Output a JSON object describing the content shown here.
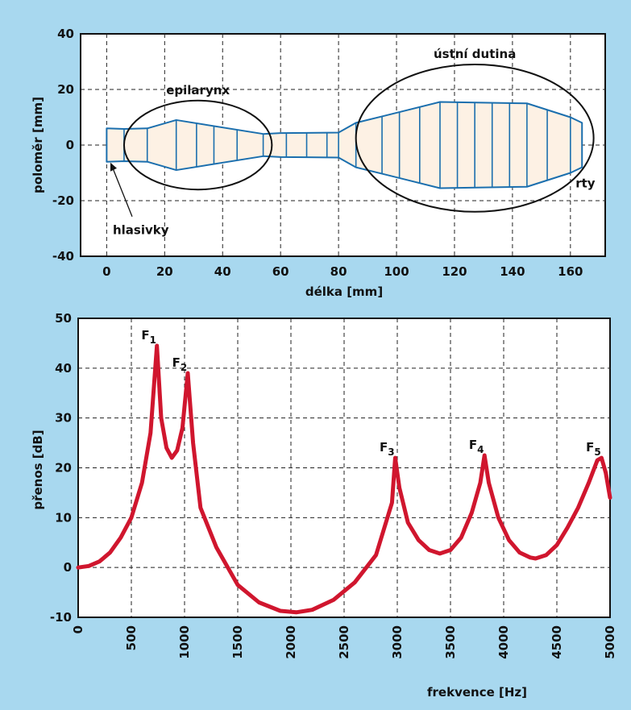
{
  "background_color": "#a8d8ef",
  "tract_stroke_color": "#1b6fae",
  "tract_fill_color": "#fdf1e4",
  "curve_color": "#d0162e",
  "chart_data": [
    {
      "type": "area",
      "xlabel": "délka [mm]",
      "ylabel": "poloměr [mm]",
      "xlim": [
        -9,
        172
      ],
      "ylim": [
        -40,
        40
      ],
      "xticks": [
        0,
        20,
        40,
        60,
        80,
        100,
        120,
        140,
        160
      ],
      "yticks": [
        -40,
        -20,
        0,
        20,
        40
      ],
      "grid": true,
      "outline_x": [
        0,
        6,
        14,
        24,
        54,
        60,
        80,
        86,
        95,
        115,
        145,
        160,
        164
      ],
      "outline_radius": [
        6,
        5.8,
        6,
        9,
        4,
        4.3,
        4.5,
        8,
        10.3,
        15.5,
        15,
        10,
        8
      ],
      "segment_boundaries": [
        6,
        14,
        24,
        31,
        37,
        45,
        54,
        62,
        69,
        76,
        80,
        86,
        95,
        101,
        108,
        115,
        121,
        127,
        133,
        139,
        145,
        152,
        160
      ],
      "regions": [
        {
          "label": "epilarynx",
          "x_range": [
            6,
            57
          ],
          "y_range": [
            -16,
            16
          ]
        },
        {
          "label": "ústní dutina",
          "x_range": [
            86,
            168
          ],
          "y_range": [
            -24,
            29
          ]
        }
      ],
      "annotations": [
        {
          "label": "hlasivky",
          "x": 1,
          "y": -6
        },
        {
          "label": "rty",
          "x": 164,
          "y": -8
        }
      ]
    },
    {
      "type": "line",
      "xlabel": "frekvence [Hz]",
      "ylabel": "přenos [dB]",
      "xlim": [
        0,
        5000
      ],
      "ylim": [
        -10,
        50
      ],
      "xticks": [
        0,
        500,
        1000,
        1500,
        2000,
        2500,
        3000,
        3500,
        4000,
        4500,
        5000
      ],
      "yticks": [
        -10,
        0,
        10,
        20,
        30,
        40,
        50
      ],
      "grid": true,
      "series": [
        {
          "x": [
            0,
            100,
            200,
            300,
            400,
            500,
            600,
            680,
            740,
            780,
            830,
            880,
            930,
            980,
            1030,
            1080,
            1150,
            1300,
            1500,
            1700,
            1900,
            2050,
            2200,
            2400,
            2600,
            2800,
            2950,
            2980,
            3020,
            3100,
            3200,
            3300,
            3400,
            3500,
            3600,
            3700,
            3780,
            3820,
            3860,
            3950,
            4050,
            4150,
            4250,
            4300,
            4400,
            4500,
            4600,
            4700,
            4800,
            4880,
            4920,
            4960,
            5000
          ],
          "y": [
            0,
            0.3,
            1.2,
            3,
            6,
            10,
            17,
            27,
            44.5,
            30,
            24,
            22,
            23.5,
            28,
            39,
            25,
            12,
            4,
            -3.5,
            -7,
            -8.7,
            -9,
            -8.5,
            -6.5,
            -3,
            2.5,
            13,
            22,
            16,
            9,
            5.5,
            3.5,
            2.8,
            3.5,
            6,
            11,
            17,
            22.5,
            17,
            10,
            5.5,
            3,
            2,
            1.8,
            2.5,
            4.5,
            8,
            12,
            17,
            21.5,
            22,
            19,
            14
          ]
        }
      ],
      "peaks": [
        {
          "label": "F",
          "index": "1",
          "x": 740,
          "y": 44.5
        },
        {
          "label": "F",
          "index": "2",
          "x": 1030,
          "y": 39
        },
        {
          "label": "F",
          "index": "3",
          "x": 2980,
          "y": 22
        },
        {
          "label": "F",
          "index": "4",
          "x": 3820,
          "y": 22.5
        },
        {
          "label": "F",
          "index": "5",
          "x": 4920,
          "y": 22
        }
      ]
    }
  ]
}
